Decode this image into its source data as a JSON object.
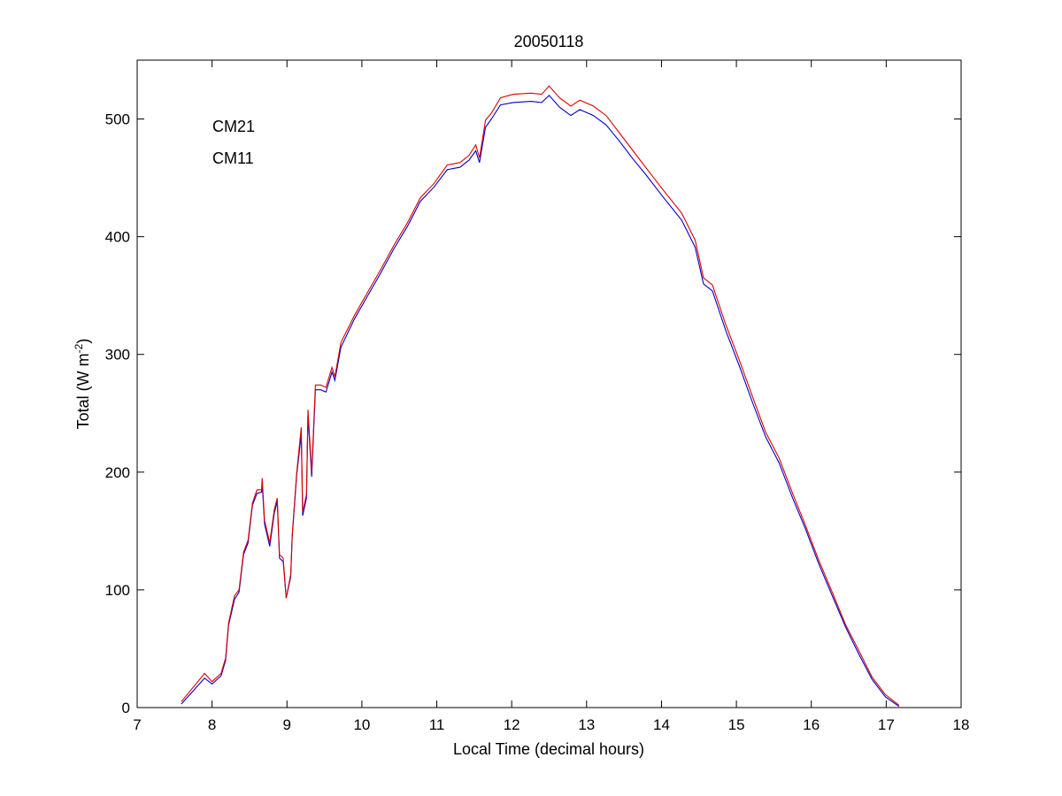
{
  "chart_data": {
    "type": "line",
    "title": "20050118",
    "xlabel": "Local Time (decimal hours)",
    "ylabel": "Total (W m",
    "ylabel_sup": "-2",
    "ylabel_end": ")",
    "xlim": [
      7,
      18
    ],
    "ylim": [
      0,
      550
    ],
    "xticks": [
      "7",
      "8",
      "9",
      "10",
      "11",
      "12",
      "13",
      "14",
      "15",
      "16",
      "17",
      "18"
    ],
    "yticks": [
      "0",
      "100",
      "200",
      "300",
      "400",
      "500"
    ],
    "grid": false,
    "legend_position": "top-left",
    "x": [
      7.59,
      7.9,
      8.0,
      8.12,
      8.18,
      8.22,
      8.3,
      8.36,
      8.42,
      8.48,
      8.54,
      8.6,
      8.66,
      8.67,
      8.7,
      8.77,
      8.83,
      8.87,
      8.9,
      8.95,
      8.99,
      9.05,
      9.07,
      9.13,
      9.19,
      9.21,
      9.26,
      9.28,
      9.33,
      9.38,
      9.45,
      9.52,
      9.6,
      9.64,
      9.72,
      9.9,
      10.07,
      10.25,
      10.43,
      10.61,
      10.78,
      10.96,
      11.14,
      11.31,
      11.43,
      11.52,
      11.57,
      11.65,
      11.73,
      11.85,
      12.02,
      12.26,
      12.4,
      12.5,
      12.64,
      12.79,
      12.91,
      13.09,
      13.26,
      13.44,
      13.62,
      13.8,
      14.03,
      14.27,
      14.45,
      14.56,
      14.68,
      14.86,
      15.04,
      15.21,
      15.39,
      15.57,
      15.75,
      15.92,
      16.1,
      16.28,
      16.46,
      16.63,
      16.81,
      16.99,
      17.17
    ],
    "series": [
      {
        "name": "CM21",
        "color": "#0000cc",
        "values": [
          3,
          25,
          20,
          27,
          40,
          70,
          92,
          98,
          130,
          140,
          172,
          182,
          183,
          190,
          156,
          137,
          165,
          175,
          127,
          124,
          93,
          111,
          145,
          198,
          232,
          163,
          178,
          248,
          196,
          270,
          270,
          268,
          285,
          278,
          306,
          330,
          349,
          369,
          390,
          409,
          430,
          442,
          457,
          459,
          465,
          473,
          463,
          493,
          500,
          512,
          514,
          515,
          514,
          520,
          510,
          503,
          508,
          503,
          495,
          481,
          466,
          452,
          433,
          414,
          391,
          360,
          354,
          320,
          290,
          260,
          230,
          208,
          178,
          152,
          122,
          95,
          68,
          46,
          24,
          9,
          1
        ]
      },
      {
        "name": "CM11",
        "color": "#dd0000",
        "values": [
          5,
          29,
          22,
          29,
          42,
          72,
          95,
          100,
          132,
          142,
          174,
          185,
          185,
          195,
          159,
          140,
          168,
          178,
          130,
          127,
          93,
          113,
          147,
          200,
          238,
          166,
          181,
          253,
          200,
          274,
          274,
          272,
          289,
          281,
          310,
          333,
          352,
          372,
          393,
          412,
          433,
          445,
          461,
          463,
          469,
          478,
          467,
          499,
          505,
          518,
          521,
          522,
          521,
          528,
          518,
          511,
          516,
          511,
          503,
          488,
          473,
          458,
          439,
          420,
          397,
          365,
          359,
          325,
          295,
          265,
          234,
          212,
          182,
          155,
          125,
          98,
          70,
          49,
          26,
          11,
          2
        ]
      }
    ]
  }
}
